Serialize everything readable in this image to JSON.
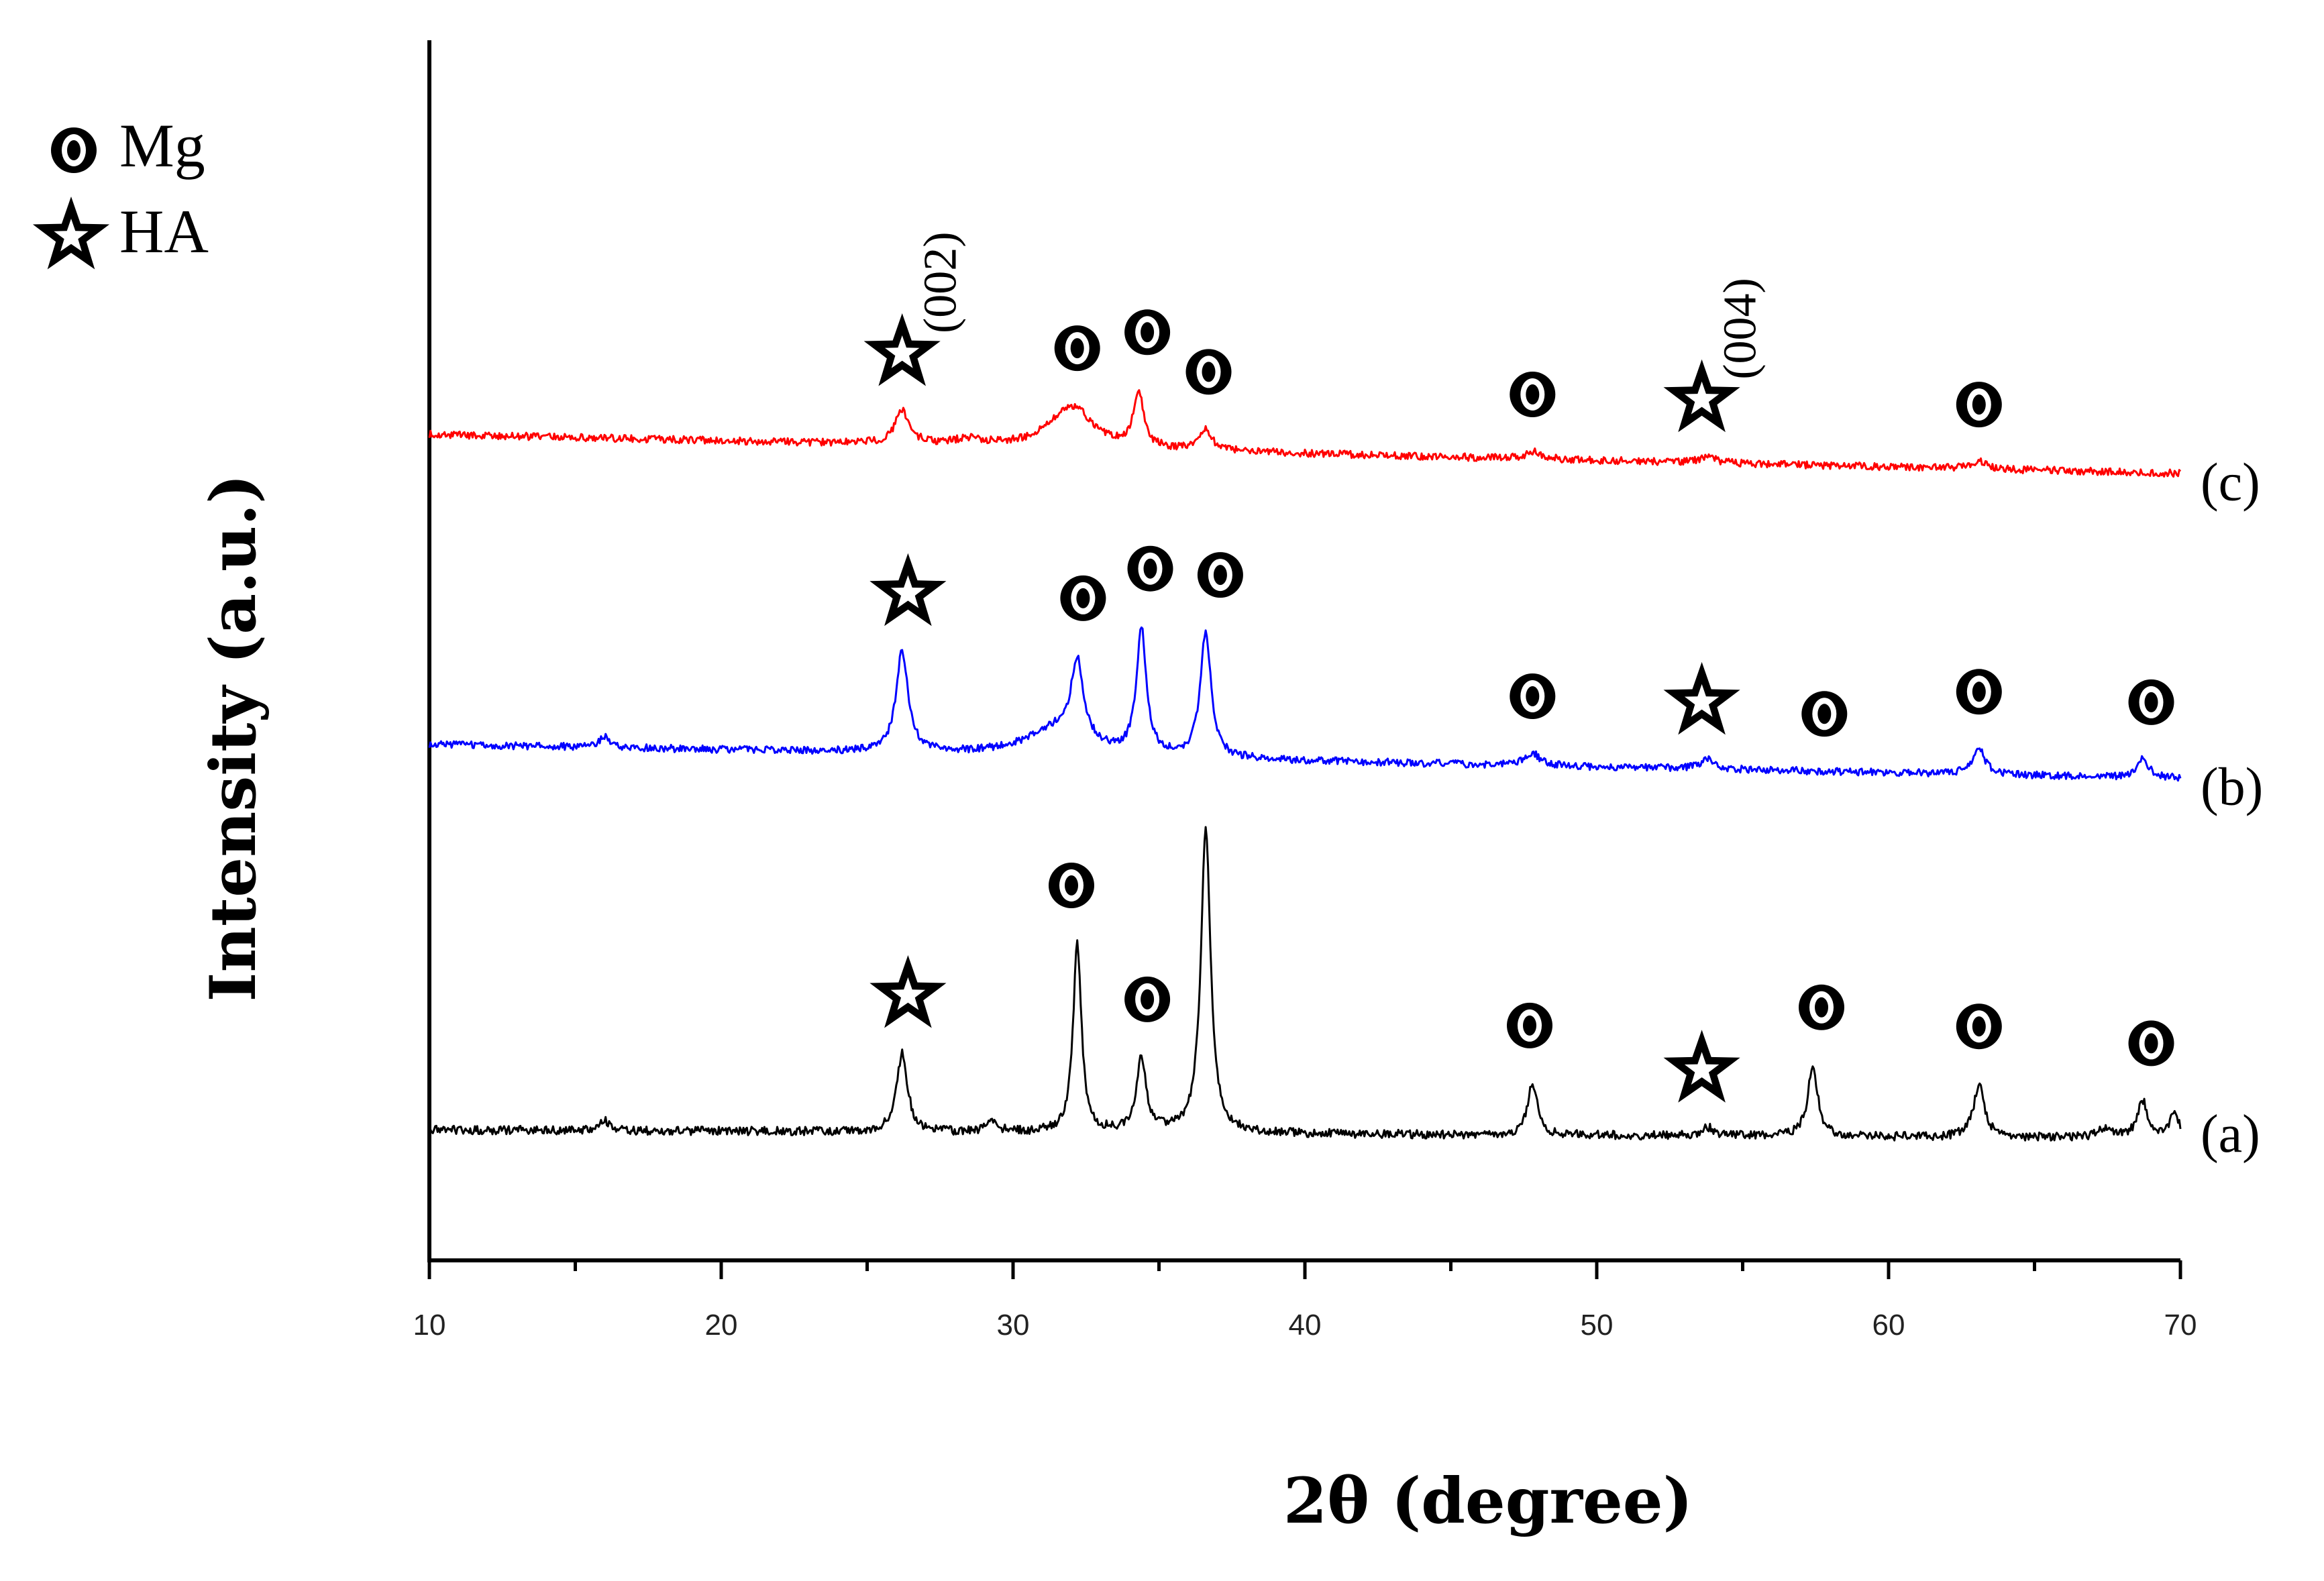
{
  "chart_data": {
    "type": "line",
    "title": "",
    "xlabel": "2θ (degree)",
    "ylabel": "Intensity (a.u.)",
    "xlim": [
      10,
      70
    ],
    "ylim": [
      0,
      100
    ],
    "x_ticks": [
      10,
      20,
      30,
      40,
      50,
      60,
      70
    ],
    "x_tick_labels": [
      "10",
      "20",
      "30",
      "40",
      "50",
      "60",
      "70"
    ],
    "grid": false,
    "legend": {
      "position": "top-left",
      "entries": [
        {
          "marker": "mg-icon",
          "label": "Mg"
        },
        {
          "marker": "ha-star-icon",
          "label": "HA"
        }
      ]
    },
    "series": [
      {
        "name": "(a)",
        "color": "#000000",
        "baseline": 10,
        "drift": 0.7,
        "noise": 0.35,
        "peaks": [
          {
            "x": 16.0,
            "h": 0.8,
            "w": 0.2
          },
          {
            "x": 26.2,
            "h": 6.5,
            "w": 0.22
          },
          {
            "x": 29.3,
            "h": 0.7,
            "w": 0.25
          },
          {
            "x": 32.2,
            "h": 15.5,
            "w": 0.17
          },
          {
            "x": 34.4,
            "h": 6.0,
            "w": 0.2
          },
          {
            "x": 36.6,
            "h": 25.0,
            "w": 0.2
          },
          {
            "x": 47.8,
            "h": 4.3,
            "w": 0.2
          },
          {
            "x": 53.8,
            "h": 0.7,
            "w": 0.25
          },
          {
            "x": 57.4,
            "h": 5.9,
            "w": 0.2
          },
          {
            "x": 63.1,
            "h": 4.4,
            "w": 0.22
          },
          {
            "x": 67.4,
            "h": 0.8,
            "w": 0.25
          },
          {
            "x": 68.7,
            "h": 3.0,
            "w": 0.22
          },
          {
            "x": 69.8,
            "h": 2.0,
            "w": 0.2
          }
        ]
      },
      {
        "name": "(b)",
        "color": "#0000ff",
        "baseline": 39.5,
        "drift": 2.8,
        "noise": 0.3,
        "peaks": [
          {
            "x": 16.0,
            "h": 0.9,
            "w": 0.2
          },
          {
            "x": 26.2,
            "h": 8.3,
            "w": 0.25
          },
          {
            "x": 31.5,
            "h": 2.2,
            "w": 1.3
          },
          {
            "x": 32.2,
            "h": 6.5,
            "w": 0.25
          },
          {
            "x": 34.4,
            "h": 10.3,
            "w": 0.2
          },
          {
            "x": 36.6,
            "h": 10.2,
            "w": 0.22
          },
          {
            "x": 47.8,
            "h": 1.0,
            "w": 0.3
          },
          {
            "x": 53.8,
            "h": 0.8,
            "w": 0.3
          },
          {
            "x": 63.1,
            "h": 2.1,
            "w": 0.25
          },
          {
            "x": 68.7,
            "h": 1.5,
            "w": 0.25
          }
        ]
      },
      {
        "name": "(c)",
        "color": "#ff0000",
        "baseline": 64.5,
        "drift": 3.2,
        "noise": 0.3,
        "peaks": [
          {
            "x": 26.2,
            "h": 2.7,
            "w": 0.3
          },
          {
            "x": 28.5,
            "h": 0.5,
            "w": 0.6
          },
          {
            "x": 32.0,
            "h": 3.5,
            "w": 0.9
          },
          {
            "x": 34.3,
            "h": 4.5,
            "w": 0.2
          },
          {
            "x": 36.6,
            "h": 1.7,
            "w": 0.25
          },
          {
            "x": 47.8,
            "h": 0.6,
            "w": 0.3
          },
          {
            "x": 53.8,
            "h": 0.5,
            "w": 0.3
          },
          {
            "x": 63.1,
            "h": 0.6,
            "w": 0.3
          }
        ]
      }
    ],
    "series_labels": [
      "(a)",
      "(b)",
      "(c)"
    ],
    "peak_markers": [
      {
        "series": "(c)",
        "type": "star",
        "x": 26.2,
        "label": "(002)"
      },
      {
        "series": "(c)",
        "type": "mg",
        "x": 32.2
      },
      {
        "series": "(c)",
        "type": "mg",
        "x": 34.6
      },
      {
        "series": "(c)",
        "type": "mg",
        "x": 36.7
      },
      {
        "series": "(c)",
        "type": "mg",
        "x": 47.8
      },
      {
        "series": "(c)",
        "type": "star",
        "x": 53.6,
        "label": "(004)"
      },
      {
        "series": "(c)",
        "type": "mg",
        "x": 63.1
      },
      {
        "series": "(b)",
        "type": "star",
        "x": 26.4
      },
      {
        "series": "(b)",
        "type": "mg",
        "x": 32.4
      },
      {
        "series": "(b)",
        "type": "mg",
        "x": 34.7
      },
      {
        "series": "(b)",
        "type": "mg",
        "x": 37.1
      },
      {
        "series": "(b)",
        "type": "mg",
        "x": 47.8
      },
      {
        "series": "(b)",
        "type": "star",
        "x": 53.6
      },
      {
        "series": "(b)",
        "type": "mg",
        "x": 57.8
      },
      {
        "series": "(b)",
        "type": "mg",
        "x": 63.1
      },
      {
        "series": "(b)",
        "type": "mg",
        "x": 69.0
      },
      {
        "series": "(a)",
        "type": "star",
        "x": 26.4
      },
      {
        "series": "(a)",
        "type": "mg",
        "x": 32.0
      },
      {
        "series": "(a)",
        "type": "mg",
        "x": 34.6
      },
      {
        "series": "(a)",
        "type": "mg",
        "x": 47.7
      },
      {
        "series": "(a)",
        "type": "star",
        "x": 53.6
      },
      {
        "series": "(a)",
        "type": "mg",
        "x": 57.7
      },
      {
        "series": "(a)",
        "type": "mg",
        "x": 63.1
      },
      {
        "series": "(a)",
        "type": "mg",
        "x": 69.0
      }
    ]
  }
}
